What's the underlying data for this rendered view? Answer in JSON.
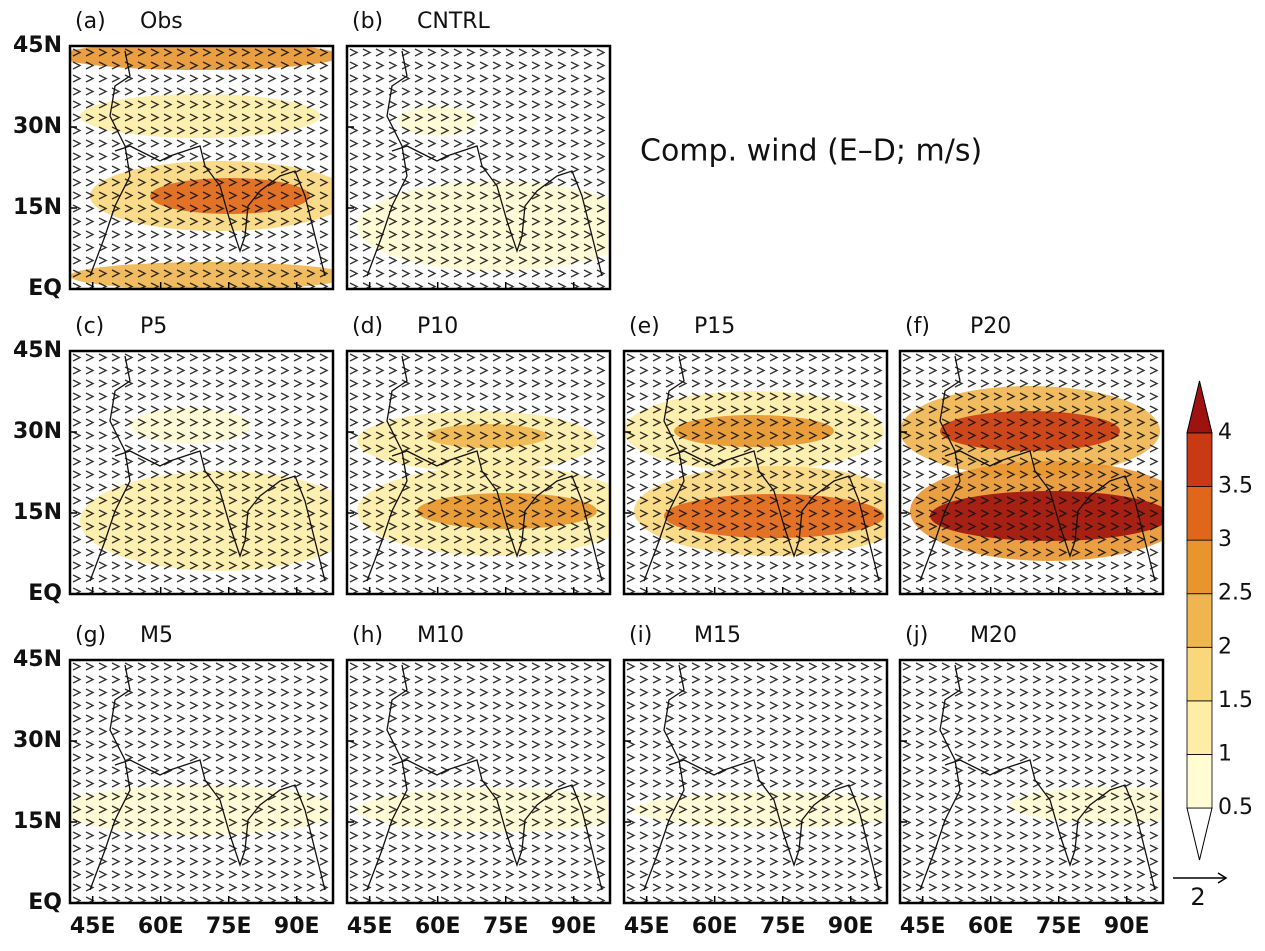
{
  "chart_data": {
    "type": "vector-map",
    "title": "Comp. wind (E–D; m/s)",
    "panels": [
      {
        "label": "(a)",
        "name": "Obs"
      },
      {
        "label": "(b)",
        "name": "CNTRL"
      },
      {
        "label": "(c)",
        "name": "P5"
      },
      {
        "label": "(d)",
        "name": "P10"
      },
      {
        "label": "(e)",
        "name": "P15"
      },
      {
        "label": "(f)",
        "name": "P20"
      },
      {
        "label": "(g)",
        "name": "M5"
      },
      {
        "label": "(h)",
        "name": "M10"
      },
      {
        "label": "(i)",
        "name": "M15"
      },
      {
        "label": "(j)",
        "name": "M20"
      }
    ],
    "xlim": [
      40,
      98
    ],
    "ylim": [
      0,
      45
    ],
    "xticks": [
      {
        "value": 45,
        "label": "45E"
      },
      {
        "value": 60,
        "label": "60E"
      },
      {
        "value": 75,
        "label": "75E"
      },
      {
        "value": 90,
        "label": "90E"
      }
    ],
    "yticks": [
      {
        "value": 0,
        "label": "EQ"
      },
      {
        "value": 15,
        "label": "15N"
      },
      {
        "value": 30,
        "label": "30N"
      },
      {
        "value": 45,
        "label": "45N"
      }
    ],
    "colorbar": {
      "ticks": [
        0.5,
        1,
        1.5,
        2,
        2.5,
        3,
        3.5,
        4
      ],
      "colors": [
        "#ffffff",
        "#fffbd2",
        "#fdeda6",
        "#f9d77c",
        "#efb54e",
        "#e8952e",
        "#e0661c",
        "#c93a14",
        "#9e1210"
      ]
    },
    "reference_vector": 2
  }
}
